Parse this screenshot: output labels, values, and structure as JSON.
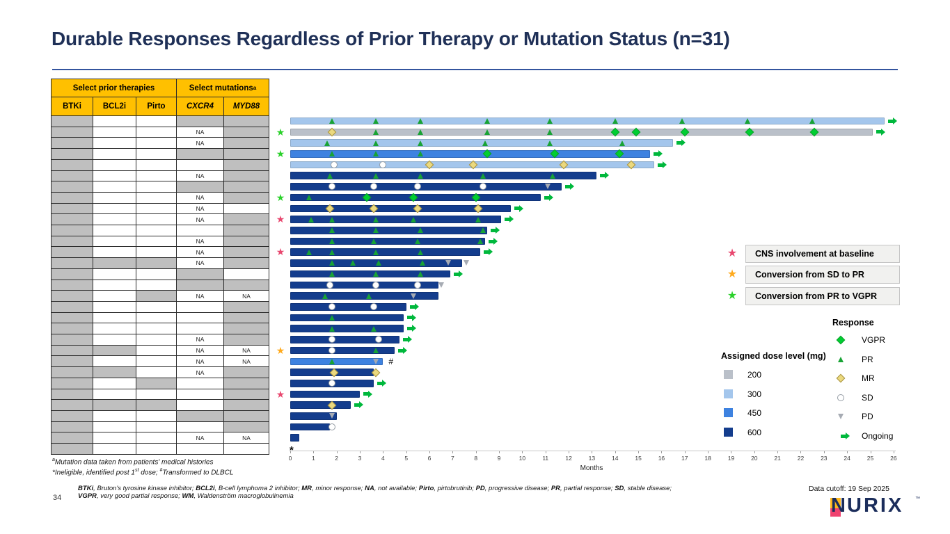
{
  "title": "Durable Responses Regardless of Prior Therapy or Mutation Status (n=31)",
  "table": {
    "group_headers": [
      {
        "label": "Select prior therapies",
        "sup": ""
      },
      {
        "label": "Select mutations",
        "sup": "a"
      }
    ],
    "columns": [
      "BTKi",
      "BCL2i",
      "Pirto",
      "CXCR4",
      "MYD88"
    ],
    "na_text": "NA",
    "footnote_lines": [
      [
        {
          "t": "a",
          "sup": true
        },
        {
          "t": "Mutation data taken from patients' medical histories"
        }
      ],
      [
        {
          "t": "*Ineligible, identified post 1"
        },
        {
          "t": "st",
          "sup": true
        },
        {
          "t": " dose; "
        },
        {
          "t": "#",
          "sup": true
        },
        {
          "t": "Transformed to DLBCL"
        }
      ]
    ]
  },
  "legend": {
    "stars": [
      {
        "color": "#E8486F",
        "label": "CNS involvement at baseline"
      },
      {
        "color": "#FFAA1D",
        "label": "Conversion from SD to PR"
      },
      {
        "color": "#2BD12B",
        "label": "Conversion from PR to VGPR"
      }
    ],
    "dose": {
      "title": "Assigned dose level (mg)",
      "items": [
        {
          "label": "200",
          "color": "#BAC0C9"
        },
        {
          "label": "300",
          "color": "#A4C6EC"
        },
        {
          "label": "450",
          "color": "#3E82E0"
        },
        {
          "label": "600",
          "color": "#143D8D"
        }
      ]
    },
    "response": {
      "title": "Response",
      "items": [
        {
          "type": "VGPR",
          "label": "VGPR"
        },
        {
          "type": "PR",
          "label": "PR"
        },
        {
          "type": "MR",
          "label": "MR"
        },
        {
          "type": "SD",
          "label": "SD"
        },
        {
          "type": "PD",
          "label": "PD"
        },
        {
          "type": "Ongoing",
          "label": "Ongoing"
        }
      ]
    }
  },
  "footer": {
    "page": "34",
    "data_cutoff": "Data cutoff: 19 Sep 2025",
    "abbrev_lines": [
      [
        {
          "t": "BTKi",
          "b": true
        },
        {
          "t": ", Bruton's tyrosine kinase inhibitor; "
        },
        {
          "t": "BCL2i",
          "b": true
        },
        {
          "t": ", B-cell lymphoma 2 inhibitor; "
        },
        {
          "t": "MR",
          "b": true
        },
        {
          "t": ", minor response; "
        },
        {
          "t": "NA",
          "b": true
        },
        {
          "t": ", not available; "
        },
        {
          "t": "Pirto",
          "b": true
        },
        {
          "t": ", pirtobrutinib; "
        },
        {
          "t": "PD",
          "b": true
        },
        {
          "t": ", progressive disease; "
        },
        {
          "t": "PR",
          "b": true
        },
        {
          "t": ", partial response; "
        },
        {
          "t": "SD",
          "b": true
        },
        {
          "t": ", stable disease;"
        }
      ],
      [
        {
          "t": "VGPR",
          "b": true
        },
        {
          "t": ", very good partial response; "
        },
        {
          "t": "WM",
          "b": true
        },
        {
          "t": ", Waldenström macroglobulinemia"
        }
      ]
    ],
    "logo": {
      "n": "N",
      "rest": "URIX",
      "tm": "™"
    }
  },
  "chart_data": {
    "type": "swimmer",
    "xlabel": "Months",
    "x_range": [
      0,
      26
    ],
    "x_ticks": [
      0,
      1,
      2,
      3,
      4,
      5,
      6,
      7,
      8,
      9,
      10,
      11,
      12,
      13,
      14,
      15,
      16,
      17,
      18,
      19,
      20,
      21,
      22,
      23,
      24,
      25,
      26
    ],
    "dose_colors": {
      "200": "#BAC0C9",
      "300": "#A4C6EC",
      "450": "#3E82E0",
      "600": "#143D8D"
    },
    "marker_colors": {
      "VGPR": "#00CE32",
      "PR": "#18A335",
      "MR": "#EBD97E",
      "SD": "#FFFFFF",
      "PD": "#A6ABB3",
      "Ongoing": "#00B83C"
    },
    "star_colors": {
      "pink": "#E8486F",
      "orange": "#FFAA1D",
      "green": "#2BD12B"
    },
    "patients": [
      {
        "btki": 1,
        "bcl2i": 0,
        "pirto": 0,
        "cxcr4": 1,
        "myd88": 1,
        "star": null,
        "dose": "300",
        "dur": 25.6,
        "ongoing": true,
        "note": null,
        "markers": {
          "PR": [
            1.8,
            3.7,
            5.6,
            8.5,
            11.2,
            14.0,
            16.9,
            19.7,
            22.5
          ]
        }
      },
      {
        "btki": 1,
        "bcl2i": 0,
        "pirto": 0,
        "cxcr4": "NA",
        "myd88": 1,
        "star": "green",
        "dose": "200",
        "dur": 25.1,
        "ongoing": true,
        "note": null,
        "markers": {
          "MR": [
            1.8
          ],
          "PR": [
            3.7,
            5.6,
            8.5,
            11.2
          ],
          "VGPR": [
            14.0,
            14.9,
            17.0,
            19.8,
            22.6
          ]
        }
      },
      {
        "btki": 1,
        "bcl2i": 0,
        "pirto": 0,
        "cxcr4": "NA",
        "myd88": 1,
        "star": null,
        "dose": "300",
        "dur": 16.5,
        "ongoing": true,
        "note": null,
        "markers": {
          "PR": [
            1.6,
            3.7,
            5.6,
            8.4,
            11.2,
            14.3
          ]
        }
      },
      {
        "btki": 1,
        "bcl2i": 0,
        "pirto": 0,
        "cxcr4": 1,
        "myd88": 1,
        "star": "green",
        "dose": "450",
        "dur": 15.5,
        "ongoing": true,
        "note": null,
        "markers": {
          "PR": [
            1.8,
            3.7,
            5.6
          ],
          "VGPR": [
            8.5,
            11.4,
            14.2
          ]
        }
      },
      {
        "btki": 1,
        "bcl2i": 0,
        "pirto": 0,
        "cxcr4": 0,
        "myd88": 1,
        "star": null,
        "dose": "300",
        "dur": 15.7,
        "ongoing": true,
        "note": null,
        "markers": {
          "SD": [
            1.9,
            4.0
          ],
          "MR": [
            6.0,
            7.9,
            11.8,
            14.7
          ]
        }
      },
      {
        "btki": 1,
        "bcl2i": 0,
        "pirto": 0,
        "cxcr4": "NA",
        "myd88": 1,
        "star": null,
        "dose": "600",
        "dur": 13.2,
        "ongoing": true,
        "note": null,
        "markers": {
          "PR": [
            1.7,
            3.7,
            5.6,
            8.3,
            11.3
          ]
        }
      },
      {
        "btki": 1,
        "bcl2i": 0,
        "pirto": 0,
        "cxcr4": 1,
        "myd88": 1,
        "star": null,
        "dose": "600",
        "dur": 11.7,
        "ongoing": true,
        "note": null,
        "markers": {
          "SD": [
            1.8,
            3.6,
            5.5,
            8.3
          ],
          "PD": [
            11.1
          ]
        }
      },
      {
        "btki": 1,
        "bcl2i": 0,
        "pirto": 0,
        "cxcr4": "NA",
        "myd88": 1,
        "star": "green",
        "dose": "600",
        "dur": 10.8,
        "ongoing": true,
        "note": null,
        "markers": {
          "PR": [
            0.8
          ],
          "VGPR": [
            3.3,
            5.3,
            8.0
          ]
        }
      },
      {
        "btki": 1,
        "bcl2i": 0,
        "pirto": 0,
        "cxcr4": "NA",
        "myd88": 0,
        "star": null,
        "dose": "600",
        "dur": 9.5,
        "ongoing": true,
        "note": null,
        "markers": {
          "MR": [
            1.7,
            3.6,
            5.5,
            8.1
          ]
        }
      },
      {
        "btki": 1,
        "bcl2i": 0,
        "pirto": 0,
        "cxcr4": "NA",
        "myd88": 1,
        "star": "pink",
        "dose": "600",
        "dur": 9.1,
        "ongoing": true,
        "note": null,
        "markers": {
          "PR": [
            0.9,
            1.8,
            3.7,
            5.3,
            8.1
          ]
        }
      },
      {
        "btki": 1,
        "bcl2i": 0,
        "pirto": 0,
        "cxcr4": 0,
        "myd88": 1,
        "star": null,
        "dose": "600",
        "dur": 8.5,
        "ongoing": true,
        "note": null,
        "markers": {
          "PR": [
            1.8,
            3.7,
            5.6,
            8.3
          ]
        }
      },
      {
        "btki": 1,
        "bcl2i": 0,
        "pirto": 0,
        "cxcr4": "NA",
        "myd88": 1,
        "star": null,
        "dose": "600",
        "dur": 8.4,
        "ongoing": true,
        "note": null,
        "markers": {
          "PR": [
            1.8,
            3.6,
            5.5,
            8.2
          ]
        }
      },
      {
        "btki": 1,
        "bcl2i": 0,
        "pirto": 0,
        "cxcr4": "NA",
        "myd88": 1,
        "star": "pink",
        "dose": "600",
        "dur": 8.2,
        "ongoing": true,
        "note": null,
        "markers": {
          "PR": [
            0.8,
            1.8,
            3.7,
            5.6
          ]
        }
      },
      {
        "btki": 1,
        "bcl2i": 1,
        "pirto": 1,
        "cxcr4": "NA",
        "myd88": 1,
        "star": null,
        "dose": "600",
        "dur": 7.4,
        "ongoing": false,
        "note": null,
        "markers": {
          "PR": [
            1.8,
            2.7,
            3.8,
            5.7
          ],
          "PD": [
            6.8,
            7.6
          ]
        }
      },
      {
        "btki": 1,
        "bcl2i": 0,
        "pirto": 0,
        "cxcr4": 1,
        "myd88": 0,
        "star": null,
        "dose": "600",
        "dur": 6.9,
        "ongoing": true,
        "note": null,
        "markers": {
          "PR": [
            1.8,
            3.7,
            5.6
          ]
        }
      },
      {
        "btki": 1,
        "bcl2i": 0,
        "pirto": 0,
        "cxcr4": 1,
        "myd88": 1,
        "star": null,
        "dose": "600",
        "dur": 6.4,
        "ongoing": false,
        "note": null,
        "markers": {
          "SD": [
            1.7,
            3.7,
            5.5
          ],
          "PD": [
            6.5
          ]
        }
      },
      {
        "btki": 1,
        "bcl2i": 0,
        "pirto": 1,
        "cxcr4": "NA",
        "myd88": "NA",
        "star": null,
        "dose": "600",
        "dur": 6.4,
        "ongoing": false,
        "note": null,
        "markers": {
          "PR": [
            1.5,
            3.4
          ],
          "PD": [
            5.3
          ]
        }
      },
      {
        "btki": 1,
        "bcl2i": 0,
        "pirto": 0,
        "cxcr4": 0,
        "myd88": 1,
        "star": null,
        "dose": "600",
        "dur": 5.0,
        "ongoing": true,
        "note": null,
        "markers": {
          "SD": [
            1.8,
            3.6
          ]
        }
      },
      {
        "btki": 1,
        "bcl2i": 0,
        "pirto": 0,
        "cxcr4": 0,
        "myd88": 1,
        "star": null,
        "dose": "600",
        "dur": 4.9,
        "ongoing": true,
        "note": null,
        "markers": {
          "PR": [
            1.8
          ]
        }
      },
      {
        "btki": 1,
        "bcl2i": 0,
        "pirto": 0,
        "cxcr4": 0,
        "myd88": 1,
        "star": null,
        "dose": "600",
        "dur": 4.9,
        "ongoing": true,
        "note": null,
        "markers": {
          "PR": [
            1.8,
            3.6
          ]
        }
      },
      {
        "btki": 1,
        "bcl2i": 0,
        "pirto": 0,
        "cxcr4": "NA",
        "myd88": 1,
        "star": null,
        "dose": "600",
        "dur": 4.7,
        "ongoing": true,
        "note": null,
        "markers": {
          "SD": [
            1.8,
            3.8
          ]
        }
      },
      {
        "btki": 1,
        "bcl2i": 1,
        "pirto": 0,
        "cxcr4": "NA",
        "myd88": "NA",
        "star": "orange",
        "dose": "600",
        "dur": 4.5,
        "ongoing": true,
        "note": null,
        "markers": {
          "SD": [
            1.8
          ],
          "PR": [
            3.7
          ]
        }
      },
      {
        "btki": 1,
        "bcl2i": 0,
        "pirto": 0,
        "cxcr4": "NA",
        "myd88": "NA",
        "star": null,
        "dose": "450",
        "dur": 4.0,
        "ongoing": false,
        "note": "#",
        "markers": {
          "PR": [
            1.8
          ],
          "PD": [
            3.7
          ]
        }
      },
      {
        "btki": 1,
        "bcl2i": 1,
        "pirto": 0,
        "cxcr4": "NA",
        "myd88": 1,
        "star": null,
        "dose": "600",
        "dur": 3.6,
        "ongoing": false,
        "note": null,
        "markers": {
          "MR": [
            1.9,
            3.7
          ]
        }
      },
      {
        "btki": 1,
        "bcl2i": 0,
        "pirto": 1,
        "cxcr4": 0,
        "myd88": 1,
        "star": null,
        "dose": "600",
        "dur": 3.6,
        "ongoing": true,
        "note": null,
        "markers": {
          "SD": [
            1.8
          ]
        }
      },
      {
        "btki": 1,
        "bcl2i": 0,
        "pirto": 0,
        "cxcr4": 0,
        "myd88": 1,
        "star": "pink",
        "dose": "600",
        "dur": 3.0,
        "ongoing": true,
        "note": null,
        "markers": {}
      },
      {
        "btki": 1,
        "bcl2i": 1,
        "pirto": 1,
        "cxcr4": 0,
        "myd88": 1,
        "star": null,
        "dose": "600",
        "dur": 2.6,
        "ongoing": true,
        "note": null,
        "markers": {
          "MR": [
            1.8
          ]
        }
      },
      {
        "btki": 1,
        "bcl2i": 0,
        "pirto": 0,
        "cxcr4": 1,
        "myd88": 1,
        "star": null,
        "dose": "600",
        "dur": 2.0,
        "ongoing": false,
        "note": null,
        "markers": {
          "PD": [
            1.8
          ]
        }
      },
      {
        "btki": 1,
        "bcl2i": 0,
        "pirto": 0,
        "cxcr4": 0,
        "myd88": 1,
        "star": null,
        "dose": "600",
        "dur": 1.7,
        "ongoing": false,
        "note": null,
        "markers": {
          "SD": [
            1.8
          ]
        }
      },
      {
        "btki": 1,
        "bcl2i": 0,
        "pirto": 0,
        "cxcr4": "NA",
        "myd88": "NA",
        "star": null,
        "dose": "600",
        "dur": 0.4,
        "ongoing": false,
        "note": null,
        "markers": {}
      },
      {
        "btki": 1,
        "bcl2i": 0,
        "pirto": 0,
        "cxcr4": 0,
        "myd88": 0,
        "star": null,
        "dose": "600",
        "dur": 0,
        "ongoing": false,
        "note": "*",
        "markers": {}
      }
    ]
  }
}
